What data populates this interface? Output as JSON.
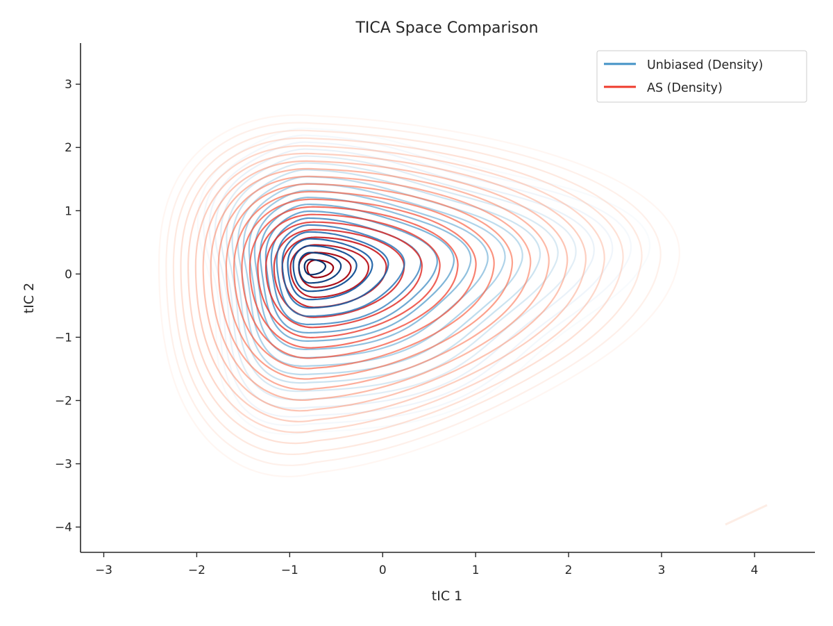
{
  "chart_data": {
    "type": "contour",
    "title": "TICA Space Comparison",
    "xlabel": "tIC 1",
    "ylabel": "tIC 2",
    "xlim": [
      -3.25,
      4.65
    ],
    "ylim": [
      -4.4,
      3.65
    ],
    "xticks": [
      -3,
      -2,
      -1,
      0,
      1,
      2,
      3,
      4
    ],
    "yticks": [
      -4,
      -3,
      -2,
      -1,
      0,
      1,
      2,
      3
    ],
    "xtick_labels": [
      "−3",
      "−2",
      "−1",
      "0",
      "1",
      "2",
      "3",
      "4"
    ],
    "ytick_labels": [
      "−4",
      "−3",
      "−2",
      "−1",
      "0",
      "1",
      "2",
      "3"
    ],
    "grid": false,
    "legend_position": "top-right",
    "series": [
      {
        "name": "Unbiased (Density)",
        "legend_color": "#4292c6",
        "colormap": "Blues",
        "peak": [
          -0.78,
          0.12
        ],
        "outer_extent": {
          "x": [
            -2.0,
            2.5
          ],
          "y": [
            -2.5,
            2.3
          ]
        }
      },
      {
        "name": "AS (Density)",
        "legend_color": "#ef3b2c",
        "colormap": "Reds",
        "peak": [
          -0.72,
          0.1
        ],
        "outer_extent": {
          "x": [
            -2.55,
            3.05
          ],
          "y": [
            -3.0,
            2.5
          ]
        }
      }
    ]
  }
}
